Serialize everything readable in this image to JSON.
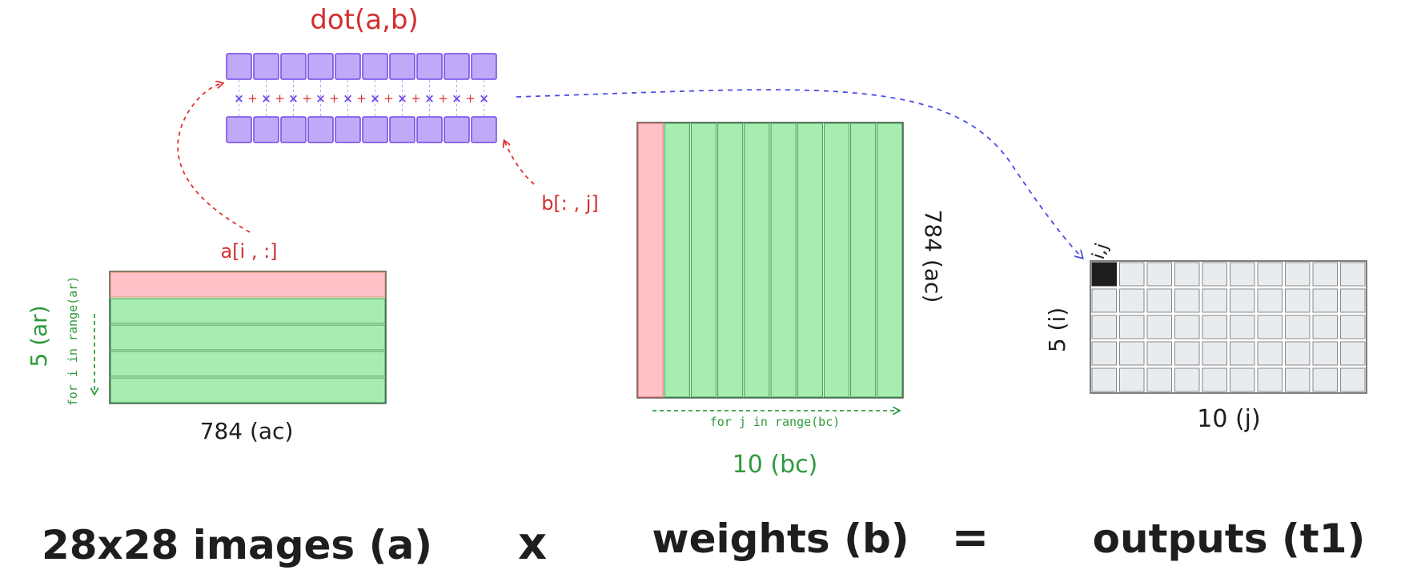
{
  "colors": {
    "red": "#e03131",
    "green": "#2f9e44",
    "purple_fill": "#c0aaf7",
    "purple_stroke": "#7048e8",
    "green_fill": "#a9ecb1",
    "pink_fill": "#ffc0c6",
    "grey_fill": "#e9ecef",
    "blue_arrow": "#4c4ce6"
  },
  "dot": {
    "title": "dot(a,b)",
    "vector_length": 10,
    "mul_symbol": "×",
    "add_symbol": "+"
  },
  "matrix_a": {
    "row_label": "a[i , :]",
    "rows_label": "5 (ar)",
    "loop_label": "for i in range(ar)",
    "cols_label": "784 (ac)",
    "rows": 5
  },
  "matrix_b": {
    "col_label": "b[: , j]",
    "rows_label": "784 (ac)",
    "loop_label": "for j in range(bc)",
    "cols_label": "10 (bc)",
    "cols": 10
  },
  "matrix_out": {
    "cell_label": "i,j",
    "rows_label": "5 (i)",
    "cols_label": "10 (j)",
    "rows": 5,
    "cols": 10
  },
  "caption": {
    "a": "28x28 images (a)",
    "times": "x",
    "b": "weights (b)",
    "equals": "=",
    "out": "outputs (t1)"
  }
}
